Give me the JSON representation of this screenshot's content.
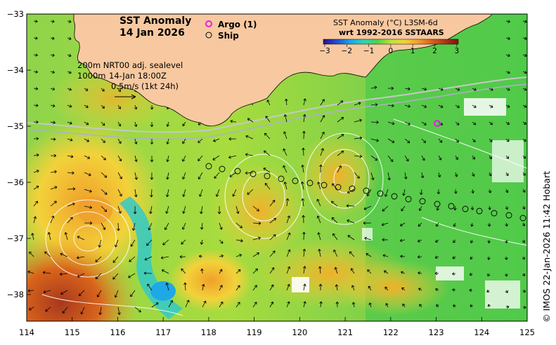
{
  "map": {
    "title_line1": "SST Anomaly",
    "title_line2": "14 Jan 2026",
    "legend_argo": "Argo (1)",
    "legend_ship": "Ship",
    "info_line1": "200m  NRT00 adj. sealevel",
    "info_line2_a": "1000m",
    "info_line2_b": "14-Jan 18:00Z",
    "info_line3": "0.5m/s (1kt 24h)",
    "colorbar_title_line1": "SST Anomaly (°C) L3SM-6d",
    "colorbar_title_line2": "wrt 1992-2016 SSTAARS",
    "colorbar_ticks": [
      "−3",
      "−2",
      "−1",
      "0",
      "1",
      "2",
      "3"
    ],
    "colorbar_colors": [
      "#2a0f8f",
      "#1f4fd6",
      "#19a8e6",
      "#2fd3b8",
      "#4fd24a",
      "#b9e33a",
      "#f2d23a",
      "#f0a02a",
      "#d9641c",
      "#b2361a",
      "#7a1410"
    ],
    "x_ticks": [
      "114",
      "115",
      "116",
      "117",
      "118",
      "119",
      "120",
      "121",
      "122",
      "123",
      "124",
      "125"
    ],
    "y_ticks": [
      "−33",
      "−34",
      "−35",
      "−36",
      "−37",
      "−38"
    ],
    "credit": "© IMOS 22-Jan-2026 11:42 Hobart",
    "land_color": "#f8c9a0",
    "argo_color": "#e020e0"
  }
}
